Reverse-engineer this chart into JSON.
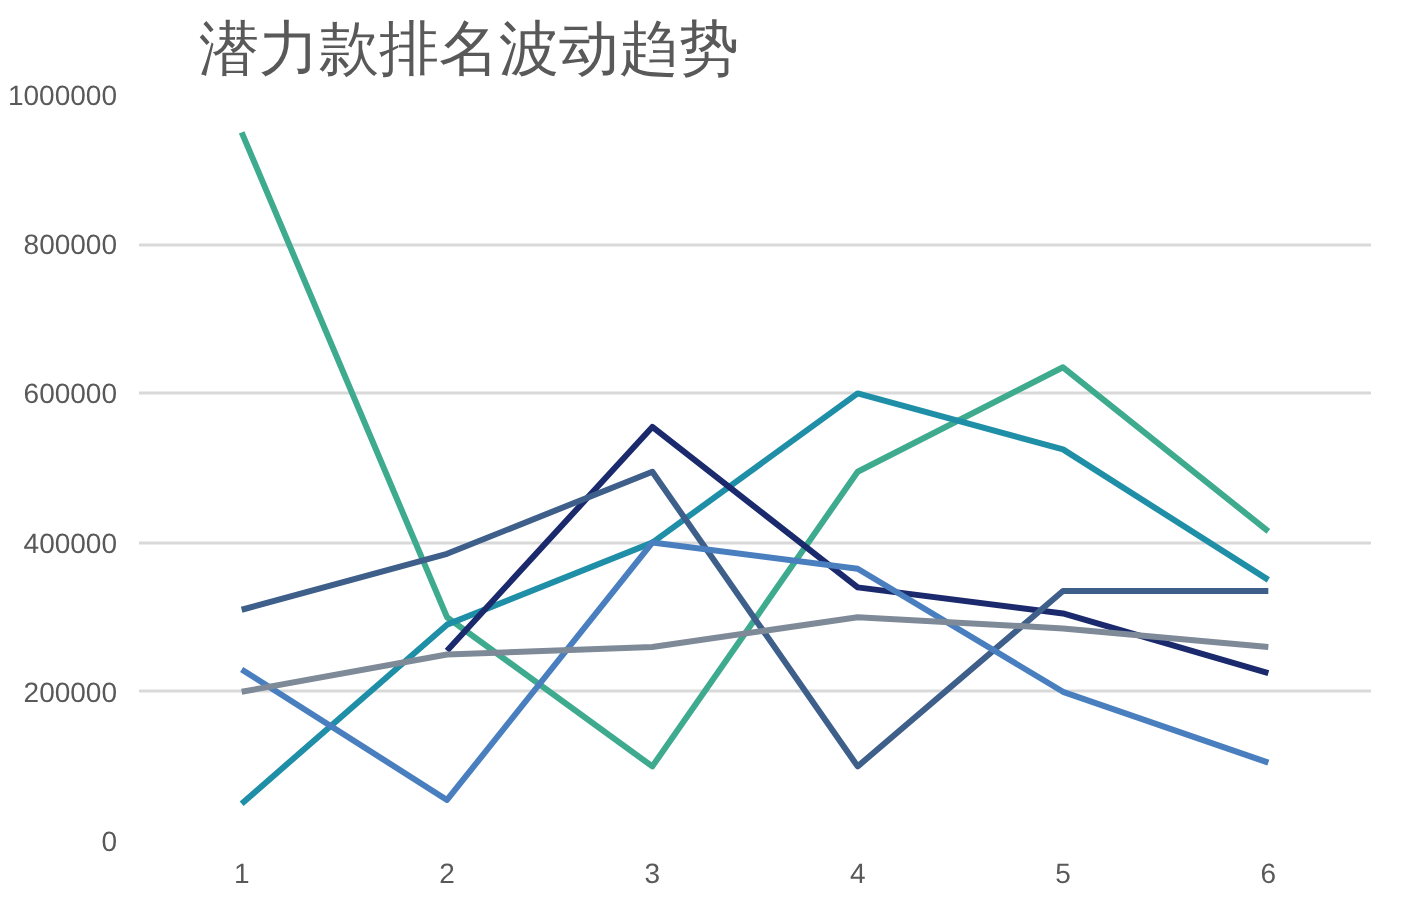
{
  "chart_data": {
    "type": "line",
    "title": "潜力款排名波动趋势",
    "categories": [
      "1",
      "2",
      "3",
      "4",
      "5",
      "6"
    ],
    "ylim": [
      0,
      1000000
    ],
    "yticks": [
      0,
      200000,
      400000,
      600000,
      800000,
      1000000
    ],
    "grid": "y",
    "series": [
      {
        "color": "#3eaa8e",
        "values": [
          950000,
          300000,
          100000,
          495000,
          635000,
          415000
        ]
      },
      {
        "color": "#1f8fa8",
        "values": [
          50000,
          290000,
          400000,
          600000,
          525000,
          350000
        ]
      },
      {
        "color": "#1a2a6c",
        "values": [
          null,
          255000,
          555000,
          340000,
          305000,
          225000
        ]
      },
      {
        "color": "#3d5f8a",
        "values": [
          310000,
          385000,
          495000,
          100000,
          335000,
          335000
        ]
      },
      {
        "color": "#4a7fbf",
        "values": [
          230000,
          55000,
          400000,
          365000,
          200000,
          105000
        ]
      },
      {
        "color": "#7f8a99",
        "values": [
          200000,
          250000,
          260000,
          300000,
          285000,
          260000
        ]
      }
    ]
  }
}
